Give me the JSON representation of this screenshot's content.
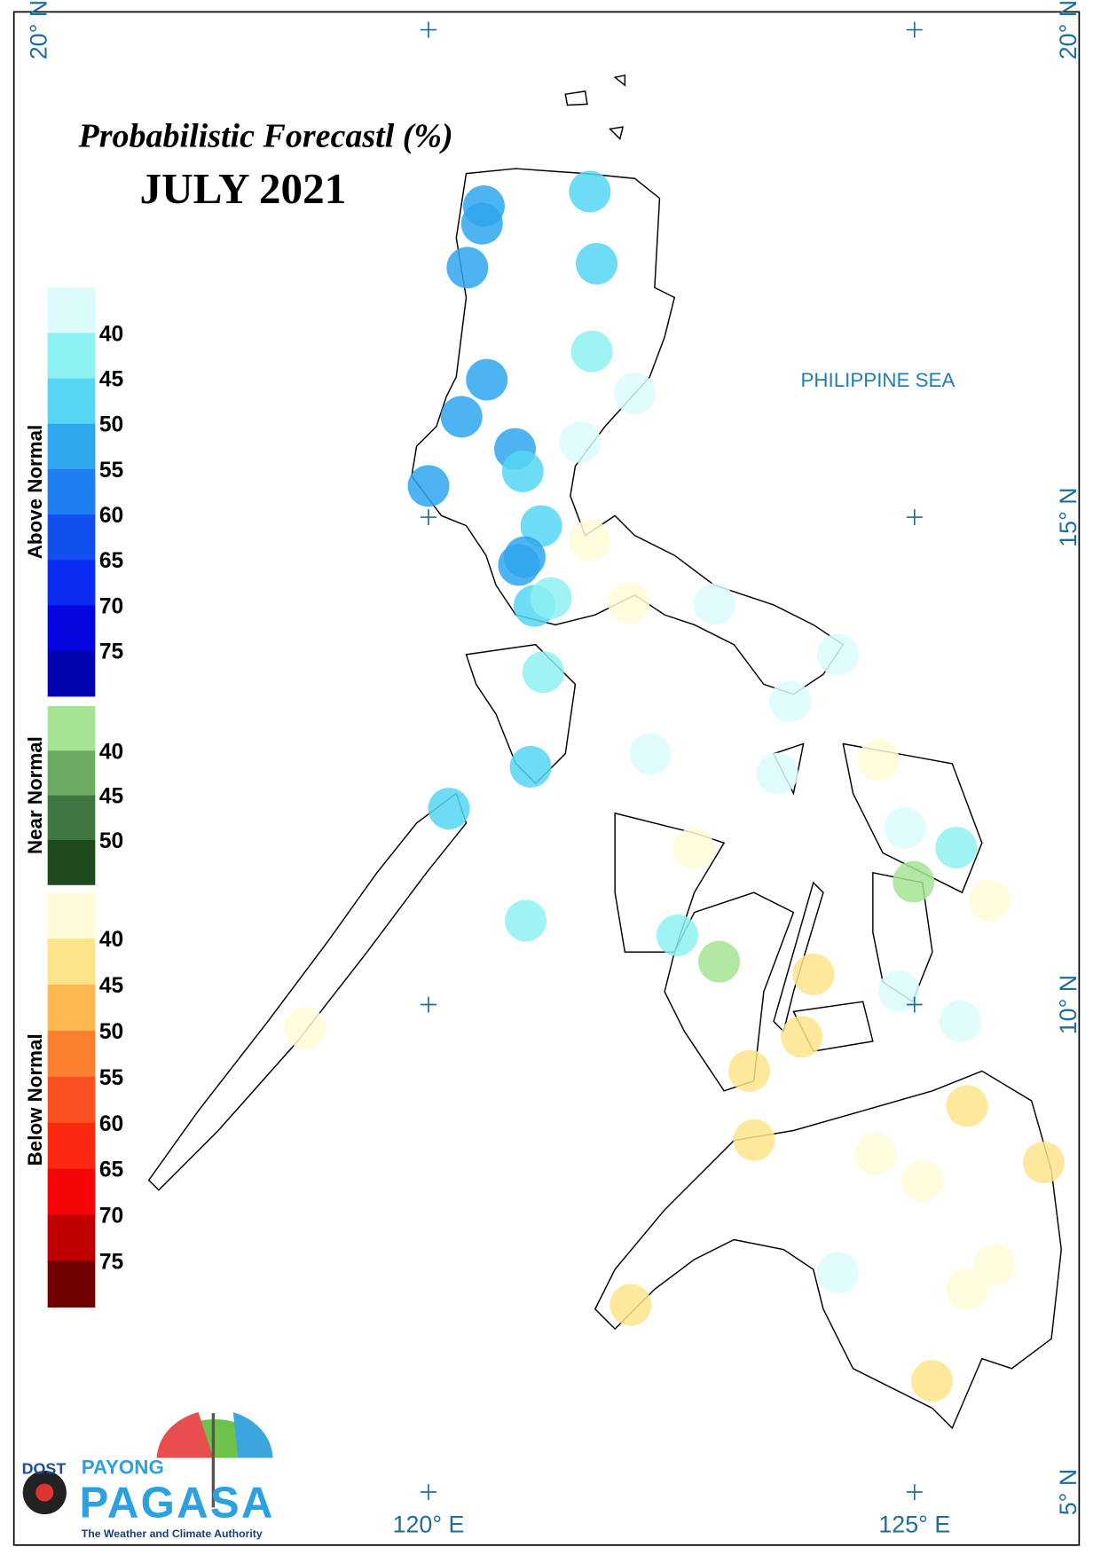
{
  "title": "Probabilistic Forecastl (%)",
  "subtitle": "JULY 2021",
  "sea_label": "PHILIPPINE SEA",
  "legend": [
    {
      "name": "Above Normal",
      "colors": [
        "#dcfcfc",
        "#8ef1f1",
        "#56d6f3",
        "#2fa6ee",
        "#1e7df0",
        "#1250ee",
        "#0a2cf0",
        "#0505e0",
        "#0303b0"
      ],
      "ticks": [
        40,
        45,
        50,
        55,
        60,
        65,
        70,
        75
      ]
    },
    {
      "name": "Near Normal",
      "colors": [
        "#a4e494",
        "#6daa62",
        "#3f7840",
        "#1e4a1e"
      ],
      "ticks": [
        40,
        45,
        50
      ]
    },
    {
      "name": "Below Normal",
      "colors": [
        "#fffbd8",
        "#fde48a",
        "#fdb850",
        "#fd8030",
        "#fd5020",
        "#fc2810",
        "#f50505",
        "#c00000",
        "#700000"
      ],
      "ticks": [
        40,
        45,
        50,
        55,
        60,
        65,
        70,
        75
      ]
    }
  ],
  "lat_ticks": [
    {
      "value": 20,
      "label": "20° N"
    },
    {
      "value": 15,
      "label": "15° N"
    },
    {
      "value": 10,
      "label": "10° N"
    },
    {
      "value": 5,
      "label": "5° N"
    }
  ],
  "lon_ticks": [
    {
      "value": 120,
      "label": "120° E"
    },
    {
      "value": 125,
      "label": "125° E"
    }
  ],
  "logo": {
    "agency": "DOST",
    "brand_top": "PAYONG",
    "brand": "PAGASA",
    "tagline": "The Weather and Climate Authority"
  },
  "stations": [
    {
      "lon": 121.66,
      "lat": 18.34,
      "category": "Above Normal",
      "probability": 47
    },
    {
      "lon": 120.57,
      "lat": 18.19,
      "category": "Above Normal",
      "probability": 52
    },
    {
      "lon": 120.55,
      "lat": 18.01,
      "category": "Above Normal",
      "probability": 52
    },
    {
      "lon": 120.4,
      "lat": 17.56,
      "category": "Above Normal",
      "probability": 52
    },
    {
      "lon": 121.73,
      "lat": 17.6,
      "category": "Above Normal",
      "probability": 47
    },
    {
      "lon": 121.68,
      "lat": 16.7,
      "category": "Above Normal",
      "probability": 43
    },
    {
      "lon": 120.6,
      "lat": 16.41,
      "category": "Above Normal",
      "probability": 52
    },
    {
      "lon": 120.34,
      "lat": 16.03,
      "category": "Above Normal",
      "probability": 52
    },
    {
      "lon": 122.12,
      "lat": 16.27,
      "category": "Above Normal",
      "probability": 35
    },
    {
      "lon": 120.89,
      "lat": 15.7,
      "category": "Above Normal",
      "probability": 52
    },
    {
      "lon": 120.97,
      "lat": 15.47,
      "category": "Above Normal",
      "probability": 47
    },
    {
      "lon": 121.56,
      "lat": 15.77,
      "category": "Above Normal",
      "probability": 35
    },
    {
      "lon": 120.0,
      "lat": 15.32,
      "category": "Above Normal",
      "probability": 52
    },
    {
      "lon": 121.16,
      "lat": 14.91,
      "category": "Above Normal",
      "probability": 47
    },
    {
      "lon": 120.99,
      "lat": 14.59,
      "category": "Above Normal",
      "probability": 52
    },
    {
      "lon": 120.93,
      "lat": 14.51,
      "category": "Above Normal",
      "probability": 52
    },
    {
      "lon": 121.09,
      "lat": 14.09,
      "category": "Above Normal",
      "probability": 47
    },
    {
      "lon": 121.26,
      "lat": 14.17,
      "category": "Above Normal",
      "probability": 43
    },
    {
      "lon": 121.66,
      "lat": 14.76,
      "category": "Below Normal",
      "probability": 35
    },
    {
      "lon": 122.06,
      "lat": 14.12,
      "category": "Below Normal",
      "probability": 35
    },
    {
      "lon": 122.94,
      "lat": 14.11,
      "category": "Above Normal",
      "probability": 35
    },
    {
      "lon": 124.21,
      "lat": 13.59,
      "category": "Above Normal",
      "probability": 35
    },
    {
      "lon": 123.72,
      "lat": 13.11,
      "category": "Above Normal",
      "probability": 35
    },
    {
      "lon": 121.18,
      "lat": 13.41,
      "category": "Above Normal",
      "probability": 43
    },
    {
      "lon": 121.05,
      "lat": 12.44,
      "category": "Above Normal",
      "probability": 47
    },
    {
      "lon": 120.21,
      "lat": 12.01,
      "category": "Above Normal",
      "probability": 47
    },
    {
      "lon": 122.28,
      "lat": 12.57,
      "category": "Above Normal",
      "probability": 35
    },
    {
      "lon": 123.59,
      "lat": 12.37,
      "category": "Above Normal",
      "probability": 35
    },
    {
      "lon": 124.63,
      "lat": 12.51,
      "category": "Below Normal",
      "probability": 35
    },
    {
      "lon": 124.9,
      "lat": 11.81,
      "category": "Above Normal",
      "probability": 35
    },
    {
      "lon": 125.43,
      "lat": 11.61,
      "category": "Above Normal",
      "probability": 43
    },
    {
      "lon": 124.99,
      "lat": 11.26,
      "category": "Near Normal",
      "probability": 38
    },
    {
      "lon": 125.77,
      "lat": 11.07,
      "category": "Below Normal",
      "probability": 35
    },
    {
      "lon": 122.73,
      "lat": 11.6,
      "category": "Below Normal",
      "probability": 35
    },
    {
      "lon": 121.0,
      "lat": 10.86,
      "category": "Above Normal",
      "probability": 43
    },
    {
      "lon": 122.56,
      "lat": 10.71,
      "category": "Above Normal",
      "probability": 43
    },
    {
      "lon": 122.99,
      "lat": 10.44,
      "category": "Near Normal",
      "probability": 38
    },
    {
      "lon": 123.96,
      "lat": 10.31,
      "category": "Below Normal",
      "probability": 43
    },
    {
      "lon": 124.84,
      "lat": 10.14,
      "category": "Above Normal",
      "probability": 35
    },
    {
      "lon": 125.47,
      "lat": 9.83,
      "category": "Above Normal",
      "probability": 35
    },
    {
      "lon": 123.84,
      "lat": 9.67,
      "category": "Below Normal",
      "probability": 43
    },
    {
      "lon": 123.3,
      "lat": 9.32,
      "category": "Below Normal",
      "probability": 43
    },
    {
      "lon": 118.73,
      "lat": 9.76,
      "category": "Below Normal",
      "probability": 35
    },
    {
      "lon": 125.54,
      "lat": 8.96,
      "category": "Below Normal",
      "probability": 43
    },
    {
      "lon": 123.35,
      "lat": 8.61,
      "category": "Below Normal",
      "probability": 43
    },
    {
      "lon": 124.6,
      "lat": 8.47,
      "category": "Below Normal",
      "probability": 35
    },
    {
      "lon": 125.08,
      "lat": 8.19,
      "category": "Below Normal",
      "probability": 35
    },
    {
      "lon": 126.33,
      "lat": 8.38,
      "category": "Below Normal",
      "probability": 43
    },
    {
      "lon": 124.21,
      "lat": 7.25,
      "category": "Above Normal",
      "probability": 35
    },
    {
      "lon": 125.82,
      "lat": 7.33,
      "category": "Below Normal",
      "probability": 35
    },
    {
      "lon": 125.54,
      "lat": 7.08,
      "category": "Below Normal",
      "probability": 35
    },
    {
      "lon": 122.08,
      "lat": 6.92,
      "category": "Below Normal",
      "probability": 43
    },
    {
      "lon": 125.18,
      "lat": 6.14,
      "category": "Below Normal",
      "probability": 43
    }
  ]
}
